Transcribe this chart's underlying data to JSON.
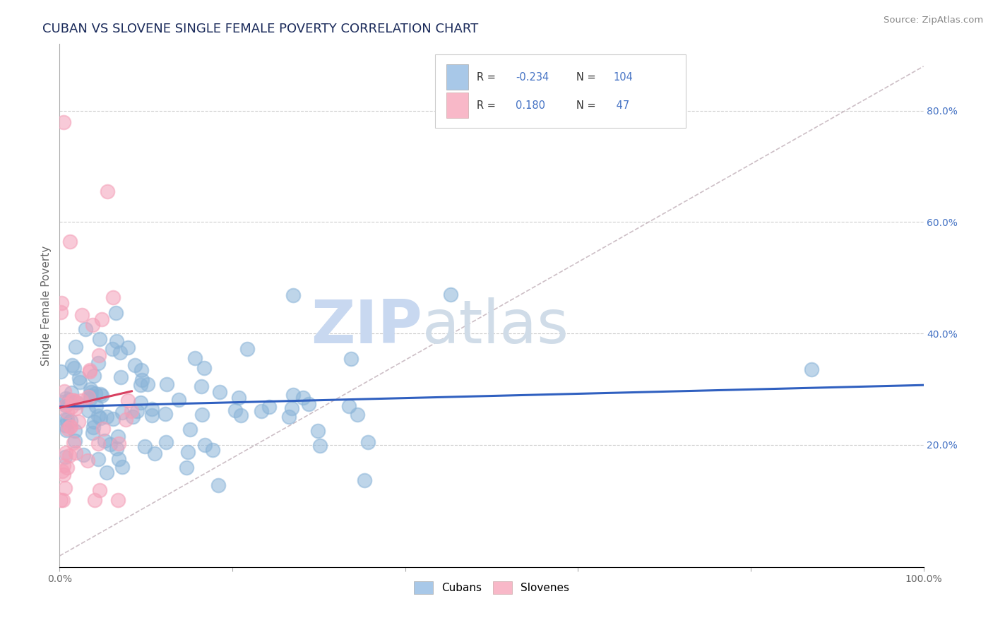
{
  "title": "CUBAN VS SLOVENE SINGLE FEMALE POVERTY CORRELATION CHART",
  "source": "Source: ZipAtlas.com",
  "ylabel": "Single Female Poverty",
  "cuban_R": -0.234,
  "cuban_N": 104,
  "slovene_R": 0.18,
  "slovene_N": 47,
  "cuban_color": "#8ab4d8",
  "slovene_color": "#f4a0b8",
  "cuban_line_color": "#3060c0",
  "slovene_line_color": "#d84060",
  "diagonal_color": "#c8b8c0",
  "background_color": "#ffffff",
  "grid_color": "#c8c8c8",
  "xlim": [
    0.0,
    1.0
  ],
  "ylim": [
    -0.02,
    0.92
  ],
  "right_ytick_vals": [
    0.2,
    0.4,
    0.6,
    0.8
  ],
  "right_ytick_labels": [
    "20.0%",
    "40.0%",
    "60.0%",
    "80.0%"
  ],
  "legend_cuban_color": "#a8c8e8",
  "legend_slovene_color": "#f8b8c8",
  "title_color": "#1a2a5a",
  "right_axis_color": "#4472c4",
  "watermark_zip_color": "#c8d8f0",
  "watermark_atlas_color": "#d0dce8"
}
